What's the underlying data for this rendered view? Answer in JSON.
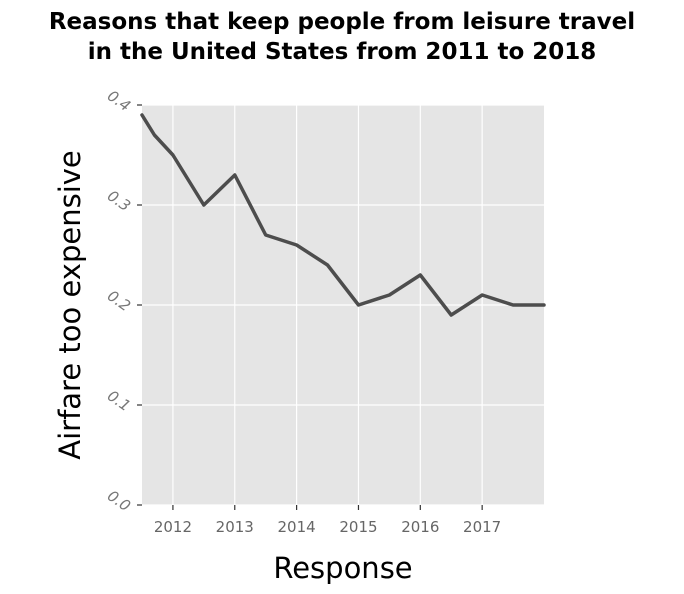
{
  "chart_data": {
    "type": "line",
    "title": [
      "Reasons that keep people from leisure travel",
      "in the United States from 2011 to 2018"
    ],
    "xlabel": "Response",
    "ylabel": "Airfare too expensive",
    "x_tick_labels": [
      "2012",
      "2013",
      "2014",
      "2015",
      "2016",
      "2017"
    ],
    "y_tick_labels": [
      "0.0",
      "0.1",
      "0.2",
      "0.3",
      "0.4"
    ],
    "y_ticks": [
      0.0,
      0.1,
      0.2,
      0.3,
      0.4
    ],
    "x_ticks": [
      2012,
      2013,
      2014,
      2015,
      2016,
      2017
    ],
    "xlim": [
      2011.5,
      2018.0
    ],
    "ylim": [
      0.0,
      0.4
    ],
    "grid": true,
    "colors": {
      "background": "#e5e5e5",
      "grid": "#ffffff",
      "line": "#4d4d4d"
    },
    "series": [
      {
        "x": [
          2011.5,
          2011.7,
          2012.0,
          2012.5,
          2013.0,
          2013.5,
          2014.0,
          2014.5,
          2015.0,
          2015.5,
          2016.0,
          2016.5,
          2017.0,
          2017.5,
          2018.0
        ],
        "values": [
          0.39,
          0.37,
          0.35,
          0.3,
          0.33,
          0.27,
          0.26,
          0.24,
          0.2,
          0.21,
          0.23,
          0.19,
          0.21,
          0.2,
          0.2
        ]
      }
    ]
  }
}
